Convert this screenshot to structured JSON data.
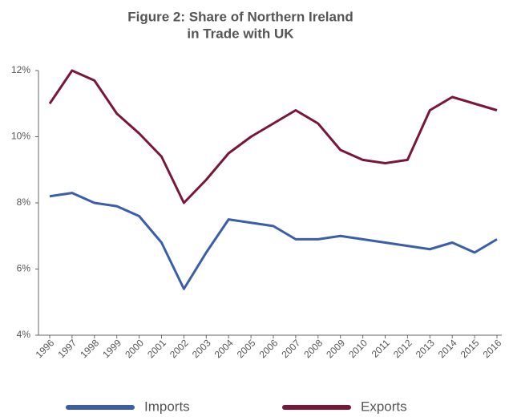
{
  "chart_data": {
    "type": "line",
    "title": "Figure 2: Share of Northern Ireland",
    "subtitle": "in Trade with UK",
    "categories": [
      "1996",
      "1997",
      "1998",
      "1999",
      "2000",
      "2001",
      "2002",
      "2003",
      "2004",
      "2005",
      "2006",
      "2007",
      "2008",
      "2009",
      "2010",
      "2011",
      "2012",
      "2013",
      "2014",
      "2015",
      "2016"
    ],
    "series": [
      {
        "name": "Imports",
        "color": "#3a5fa8",
        "values": [
          8.2,
          8.3,
          8.0,
          7.9,
          7.6,
          6.8,
          5.4,
          6.5,
          7.5,
          7.4,
          7.3,
          6.9,
          6.9,
          7.0,
          6.9,
          6.8,
          6.7,
          6.6,
          6.8,
          6.5,
          6.9
        ]
      },
      {
        "name": "Exports",
        "color": "#7a1636",
        "values": [
          11.0,
          12.0,
          11.7,
          10.7,
          10.1,
          9.4,
          8.0,
          8.7,
          9.5,
          10.0,
          10.4,
          10.8,
          10.4,
          9.6,
          9.3,
          9.2,
          9.3,
          10.8,
          11.2,
          11.0,
          10.8
        ]
      }
    ],
    "ylim": [
      4,
      12
    ],
    "yticks": [
      {
        "value": 4,
        "label": "4%"
      },
      {
        "value": 6,
        "label": "6%"
      },
      {
        "value": 8,
        "label": "8%"
      },
      {
        "value": 10,
        "label": "10%"
      },
      {
        "value": 12,
        "label": "12%"
      }
    ],
    "grid": false,
    "legend": "bottom"
  }
}
